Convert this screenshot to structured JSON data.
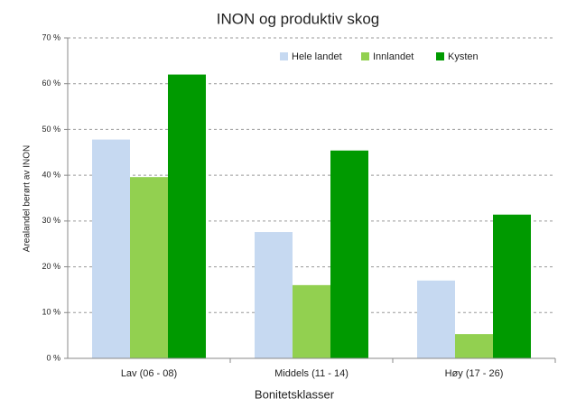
{
  "chart_data": {
    "type": "bar",
    "title": "INON og produktiv skog",
    "xlabel": "Bonitetsklasser",
    "ylabel": "Arealandel berørt av INON",
    "categories": [
      "Lav (06 - 08)",
      "Middels (11 - 14)",
      "Høy (17 - 26)"
    ],
    "series": [
      {
        "name": "Hele landet",
        "color": "#c6d9f1",
        "values": [
          47.8,
          27.6,
          17
        ]
      },
      {
        "name": "Innlandet",
        "color": "#92d050",
        "values": [
          39.6,
          16,
          5.3
        ]
      },
      {
        "name": "Kysten",
        "color": "#009a00",
        "values": [
          62,
          45.4,
          31.4
        ]
      }
    ],
    "ylim": [
      0,
      70
    ],
    "yticks": [
      {
        "value": 0,
        "label": "0 %"
      },
      {
        "value": 10,
        "label": "10 %"
      },
      {
        "value": 20,
        "label": "20 %"
      },
      {
        "value": 30,
        "label": "30 %"
      },
      {
        "value": 40,
        "label": "40 %"
      },
      {
        "value": 50,
        "label": "50 %"
      },
      {
        "value": 60,
        "label": "60 %"
      },
      {
        "value": 70,
        "label": "70 %"
      }
    ],
    "grid": true,
    "legend": "top-right"
  }
}
